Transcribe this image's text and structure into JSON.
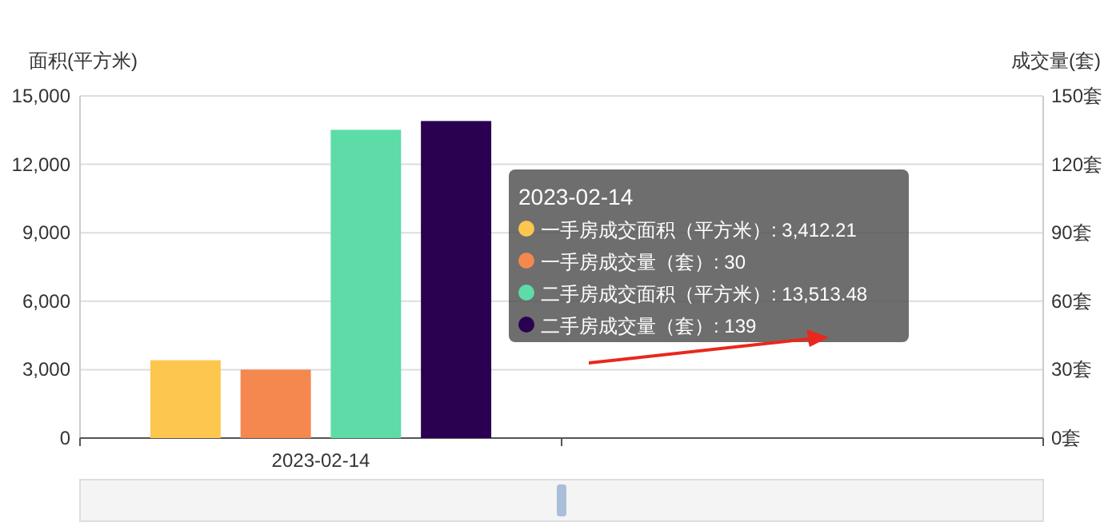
{
  "chart_data": {
    "type": "bar",
    "categories": [
      "2023-02-14",
      null
    ],
    "series": [
      {
        "color": "#fcc64f",
        "values": [
          3412.21,
          null
        ]
      },
      {
        "color": "#f4884f",
        "values": [
          30,
          null
        ],
        "axis": "y2"
      },
      {
        "color": "#5ddca7",
        "values": [
          13513.48,
          null
        ]
      },
      {
        "color": "#2a0050",
        "values": [
          139,
          null
        ],
        "axis": "y2"
      }
    ],
    "ylabel": "面积(平方米)",
    "y2label": "成交量(套)",
    "ylim": [
      0,
      15000
    ],
    "yticks": [
      0,
      {
        "value": 3000,
        "label": "3,000"
      },
      {
        "value": 6000,
        "label": "6,000"
      },
      {
        "value": 9000,
        "label": "9,000"
      },
      {
        "value": 12000,
        "label": "12,000"
      },
      {
        "value": 15000,
        "label": "15,000"
      }
    ],
    "y2lim": [
      0,
      150
    ],
    "y2ticks": [
      {
        "value": 0,
        "label": "0套"
      },
      {
        "value": 30,
        "label": "30套"
      },
      {
        "value": 60,
        "label": "60套"
      },
      {
        "value": 90,
        "label": "90套"
      },
      {
        "value": 120,
        "label": "120套"
      },
      {
        "value": 150,
        "label": "150套"
      }
    ],
    "grid": "y",
    "annotations": [
      "2023-02-14",
      "一手房成交面积（平方米）: 3,412.21",
      "一手房成交量（套）: 30",
      "二手房成交面积（平方米）: 13,513.48",
      "二手房成交量（套）: 139"
    ]
  }
}
